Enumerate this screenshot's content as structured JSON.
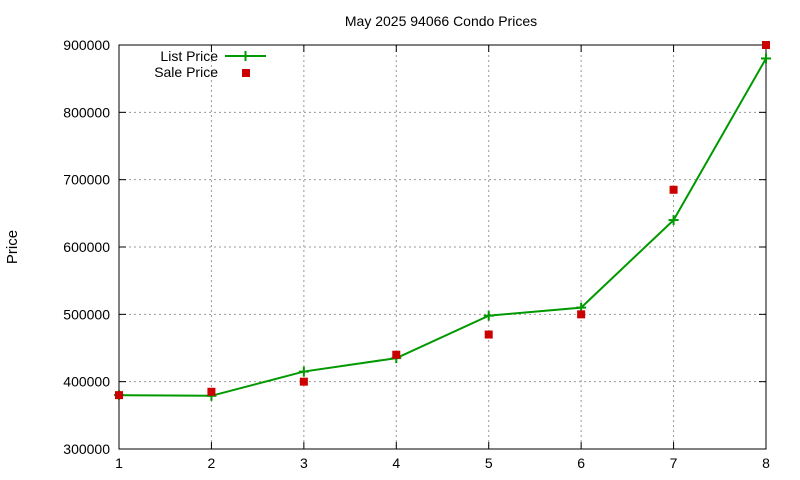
{
  "chart_data": {
    "type": "line",
    "title": "May 2025 94066 Condo Prices",
    "xlabel": "",
    "ylabel": "Price",
    "xlim": [
      1,
      8
    ],
    "ylim": [
      300000,
      900000
    ],
    "x_ticks": [
      "1",
      "2",
      "3",
      "4",
      "5",
      "6",
      "7",
      "8"
    ],
    "y_ticks": [
      "300000",
      "400000",
      "500000",
      "600000",
      "700000",
      "800000",
      "900000"
    ],
    "grid": true,
    "legend_position": "top-left",
    "x": [
      1,
      2,
      3,
      4,
      5,
      6,
      7,
      8
    ],
    "series": [
      {
        "name": "List Price",
        "kind": "line-with-plus-markers",
        "color": "#009900",
        "values": [
          380000,
          379000,
          415000,
          435000,
          498000,
          510000,
          640000,
          880000
        ]
      },
      {
        "name": "Sale Price",
        "kind": "square-markers",
        "color": "#cc0000",
        "values": [
          380000,
          385000,
          400000,
          440000,
          470000,
          500000,
          685000,
          900000
        ]
      }
    ]
  }
}
